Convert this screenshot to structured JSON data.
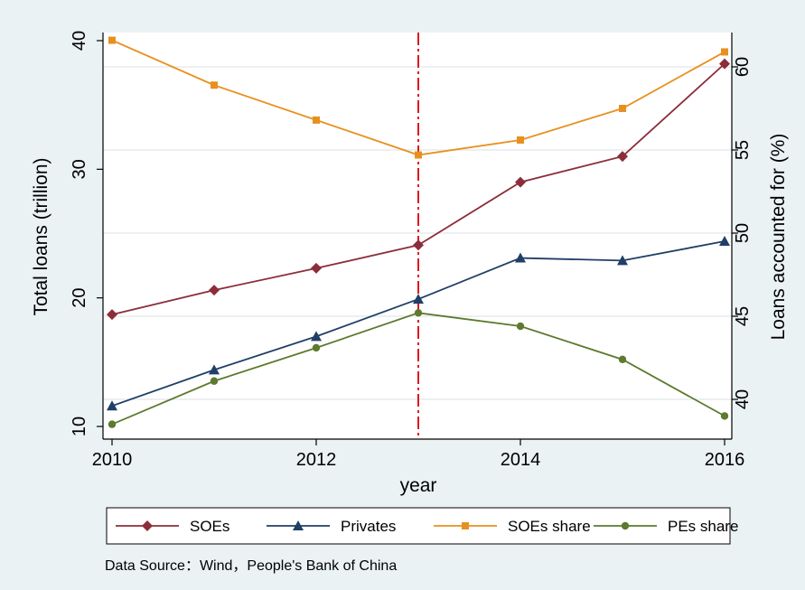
{
  "chart_data": {
    "type": "line",
    "x": [
      2010,
      2011,
      2012,
      2013,
      2014,
      2015,
      2016
    ],
    "x_ticks": [
      "2010",
      "2012",
      "2014",
      "2016"
    ],
    "xlabel": "year",
    "ylabel_left": "Total loans (trillion)",
    "ylabel_right": "Loans accounted for  (%)",
    "ylim_left": [
      9.5,
      41.5
    ],
    "ylim_right": [
      38.0,
      62.5
    ],
    "yticks_left": [
      "10",
      "20",
      "30",
      "40"
    ],
    "yticks_right": [
      "40",
      "45",
      "50",
      "55",
      "60"
    ],
    "vline_x": 2013,
    "grid": true,
    "legend_position": "bottom",
    "series": [
      {
        "name": "SOEs",
        "axis": "left",
        "color": "#8b2e3a",
        "marker": "diamond",
        "values": [
          18.7,
          20.6,
          22.3,
          24.1,
          29.0,
          31.0,
          38.2
        ]
      },
      {
        "name": "Privates",
        "axis": "left",
        "color": "#1f3f66",
        "marker": "triangle",
        "values": [
          11.6,
          14.4,
          17.0,
          19.9,
          23.1,
          22.9,
          24.4
        ]
      },
      {
        "name": "SOEs share",
        "axis": "right",
        "color": "#e8901f",
        "marker": "square",
        "values": [
          61.6,
          58.9,
          56.8,
          54.7,
          55.6,
          57.5,
          60.9
        ]
      },
      {
        "name": "PEs share",
        "axis": "right",
        "color": "#5d7a2e",
        "marker": "circle",
        "values": [
          38.5,
          41.1,
          43.1,
          45.2,
          44.4,
          42.4,
          39.0
        ]
      }
    ]
  },
  "source_note": "Data Source：Wind，People's Bank of China"
}
